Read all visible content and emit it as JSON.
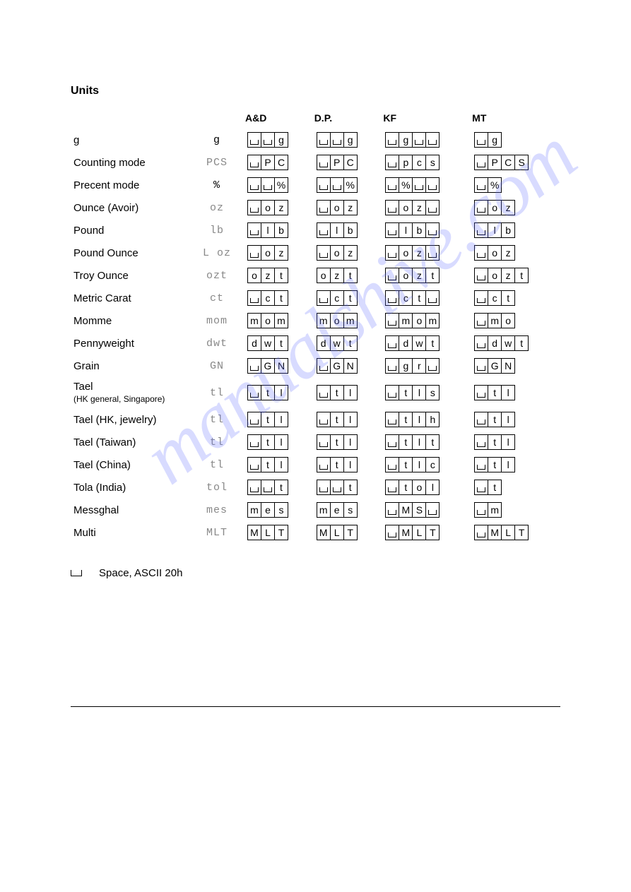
{
  "title": "Units",
  "watermark_text": "manualshive.com",
  "watermark_color": "rgba(100,110,255,0.25)",
  "headers": [
    "",
    "",
    "A&D",
    "D.P.",
    "KF",
    "MT"
  ],
  "footnote": "Space,  ASCII  20h",
  "space_char": "_",
  "rows": [
    {
      "label": "g",
      "symbol": "g",
      "symbol_style": "dark",
      "AD": [
        "_",
        "_",
        "g"
      ],
      "DP": [
        "_",
        "_",
        "g"
      ],
      "KF": [
        "_",
        "g",
        "_",
        "_"
      ],
      "MT": [
        "_",
        "g"
      ]
    },
    {
      "label": "Counting mode",
      "symbol": "PCS",
      "AD": [
        "_",
        "P",
        "C"
      ],
      "DP": [
        "_",
        "P",
        "C"
      ],
      "KF": [
        "_",
        "p",
        "c",
        "s"
      ],
      "MT": [
        "_",
        "P",
        "C",
        "S"
      ]
    },
    {
      "label": "Precent mode",
      "symbol": "%",
      "symbol_style": "dark",
      "AD": [
        "_",
        "_",
        "%"
      ],
      "DP": [
        "_",
        "_",
        "%"
      ],
      "KF": [
        "_",
        "%",
        "_",
        "_"
      ],
      "MT": [
        "_",
        "%"
      ]
    },
    {
      "label": "Ounce (Avoir)",
      "symbol": "oz",
      "AD": [
        "_",
        "o",
        "z"
      ],
      "DP": [
        "_",
        "o",
        "z"
      ],
      "KF": [
        "_",
        "o",
        "z",
        "_"
      ],
      "MT": [
        "_",
        "o",
        "z"
      ]
    },
    {
      "label": "Pound",
      "symbol": "lb",
      "AD": [
        "_",
        "l",
        "b"
      ],
      "DP": [
        "_",
        "l",
        "b"
      ],
      "KF": [
        "_",
        "l",
        "b",
        "_"
      ],
      "MT": [
        "_",
        "l",
        "b"
      ]
    },
    {
      "label": "Pound Ounce",
      "symbol": "L oz",
      "AD": [
        "_",
        "o",
        "z"
      ],
      "DP": [
        "_",
        "o",
        "z"
      ],
      "KF": [
        "_",
        "o",
        "z",
        "_"
      ],
      "MT": [
        "_",
        "o",
        "z"
      ]
    },
    {
      "label": "Troy Ounce",
      "symbol": "ozt",
      "AD": [
        "o",
        "z",
        "t"
      ],
      "DP": [
        "o",
        "z",
        "t"
      ],
      "KF": [
        "_",
        "o",
        "z",
        "t"
      ],
      "MT": [
        "_",
        "o",
        "z",
        "t"
      ]
    },
    {
      "label": "Metric Carat",
      "symbol": "ct",
      "AD": [
        "_",
        "c",
        "t"
      ],
      "DP": [
        "_",
        "c",
        "t"
      ],
      "KF": [
        "_",
        "c",
        "t",
        "_"
      ],
      "MT": [
        "_",
        "c",
        "t"
      ]
    },
    {
      "label": "Momme",
      "symbol": "mom",
      "AD": [
        "m",
        "o",
        "m"
      ],
      "DP": [
        "m",
        "o",
        "m"
      ],
      "KF": [
        "_",
        "m",
        "o",
        "m"
      ],
      "MT": [
        "_",
        "m",
        "o"
      ]
    },
    {
      "label": "Pennyweight",
      "symbol": "dwt",
      "AD": [
        "d",
        "w",
        "t"
      ],
      "DP": [
        "d",
        "w",
        "t"
      ],
      "KF": [
        "_",
        "d",
        "w",
        "t"
      ],
      "MT": [
        "_",
        "d",
        "w",
        "t"
      ]
    },
    {
      "label": "Grain",
      "symbol": "GN",
      "AD": [
        "_",
        "G",
        "N"
      ],
      "DP": [
        "_",
        "G",
        "N"
      ],
      "KF": [
        "_",
        "g",
        "r",
        "_"
      ],
      "MT": [
        "_",
        "G",
        "N"
      ]
    },
    {
      "label": "Tael",
      "label_extra": "(HK general, Singapore)",
      "symbol": "tl",
      "AD": [
        "_",
        "t",
        "l"
      ],
      "DP": [
        "_",
        "t",
        "l"
      ],
      "KF": [
        "_",
        "t",
        "l",
        "s"
      ],
      "MT": [
        "_",
        "t",
        "l"
      ]
    },
    {
      "label": "Tael (HK, jewelry)",
      "symbol": "tl",
      "AD": [
        "_",
        "t",
        "l"
      ],
      "DP": [
        "_",
        "t",
        "l"
      ],
      "KF": [
        "_",
        "t",
        "l",
        "h"
      ],
      "MT": [
        "_",
        "t",
        "l"
      ]
    },
    {
      "label": "Tael (Taiwan)",
      "symbol": "tl",
      "AD": [
        "_",
        "t",
        "l"
      ],
      "DP": [
        "_",
        "t",
        "l"
      ],
      "KF": [
        "_",
        "t",
        "l",
        "t"
      ],
      "MT": [
        "_",
        "t",
        "l"
      ]
    },
    {
      "label": "Tael (China)",
      "symbol": "tl",
      "AD": [
        "_",
        "t",
        "l"
      ],
      "DP": [
        "_",
        "t",
        "l"
      ],
      "KF": [
        "_",
        "t",
        "l",
        "c"
      ],
      "MT": [
        "_",
        "t",
        "l"
      ]
    },
    {
      "label": "Tola (India)",
      "symbol": "tol",
      "AD": [
        "_",
        "_",
        "t"
      ],
      "DP": [
        "_",
        "_",
        "t"
      ],
      "KF": [
        "_",
        "t",
        "o",
        "l"
      ],
      "MT": [
        "_",
        "t"
      ]
    },
    {
      "label": "Messghal",
      "symbol": "mes",
      "AD": [
        "m",
        "e",
        "s"
      ],
      "DP": [
        "m",
        "e",
        "s"
      ],
      "KF": [
        "_",
        "M",
        "S",
        "_"
      ],
      "MT": [
        "_",
        "m"
      ]
    },
    {
      "label": "Multi",
      "symbol": "MLT",
      "AD": [
        "M",
        "L",
        "T"
      ],
      "DP": [
        "M",
        "L",
        "T"
      ],
      "KF": [
        "_",
        "M",
        "L",
        "T"
      ],
      "MT": [
        "_",
        "M",
        "L",
        "T"
      ]
    }
  ]
}
